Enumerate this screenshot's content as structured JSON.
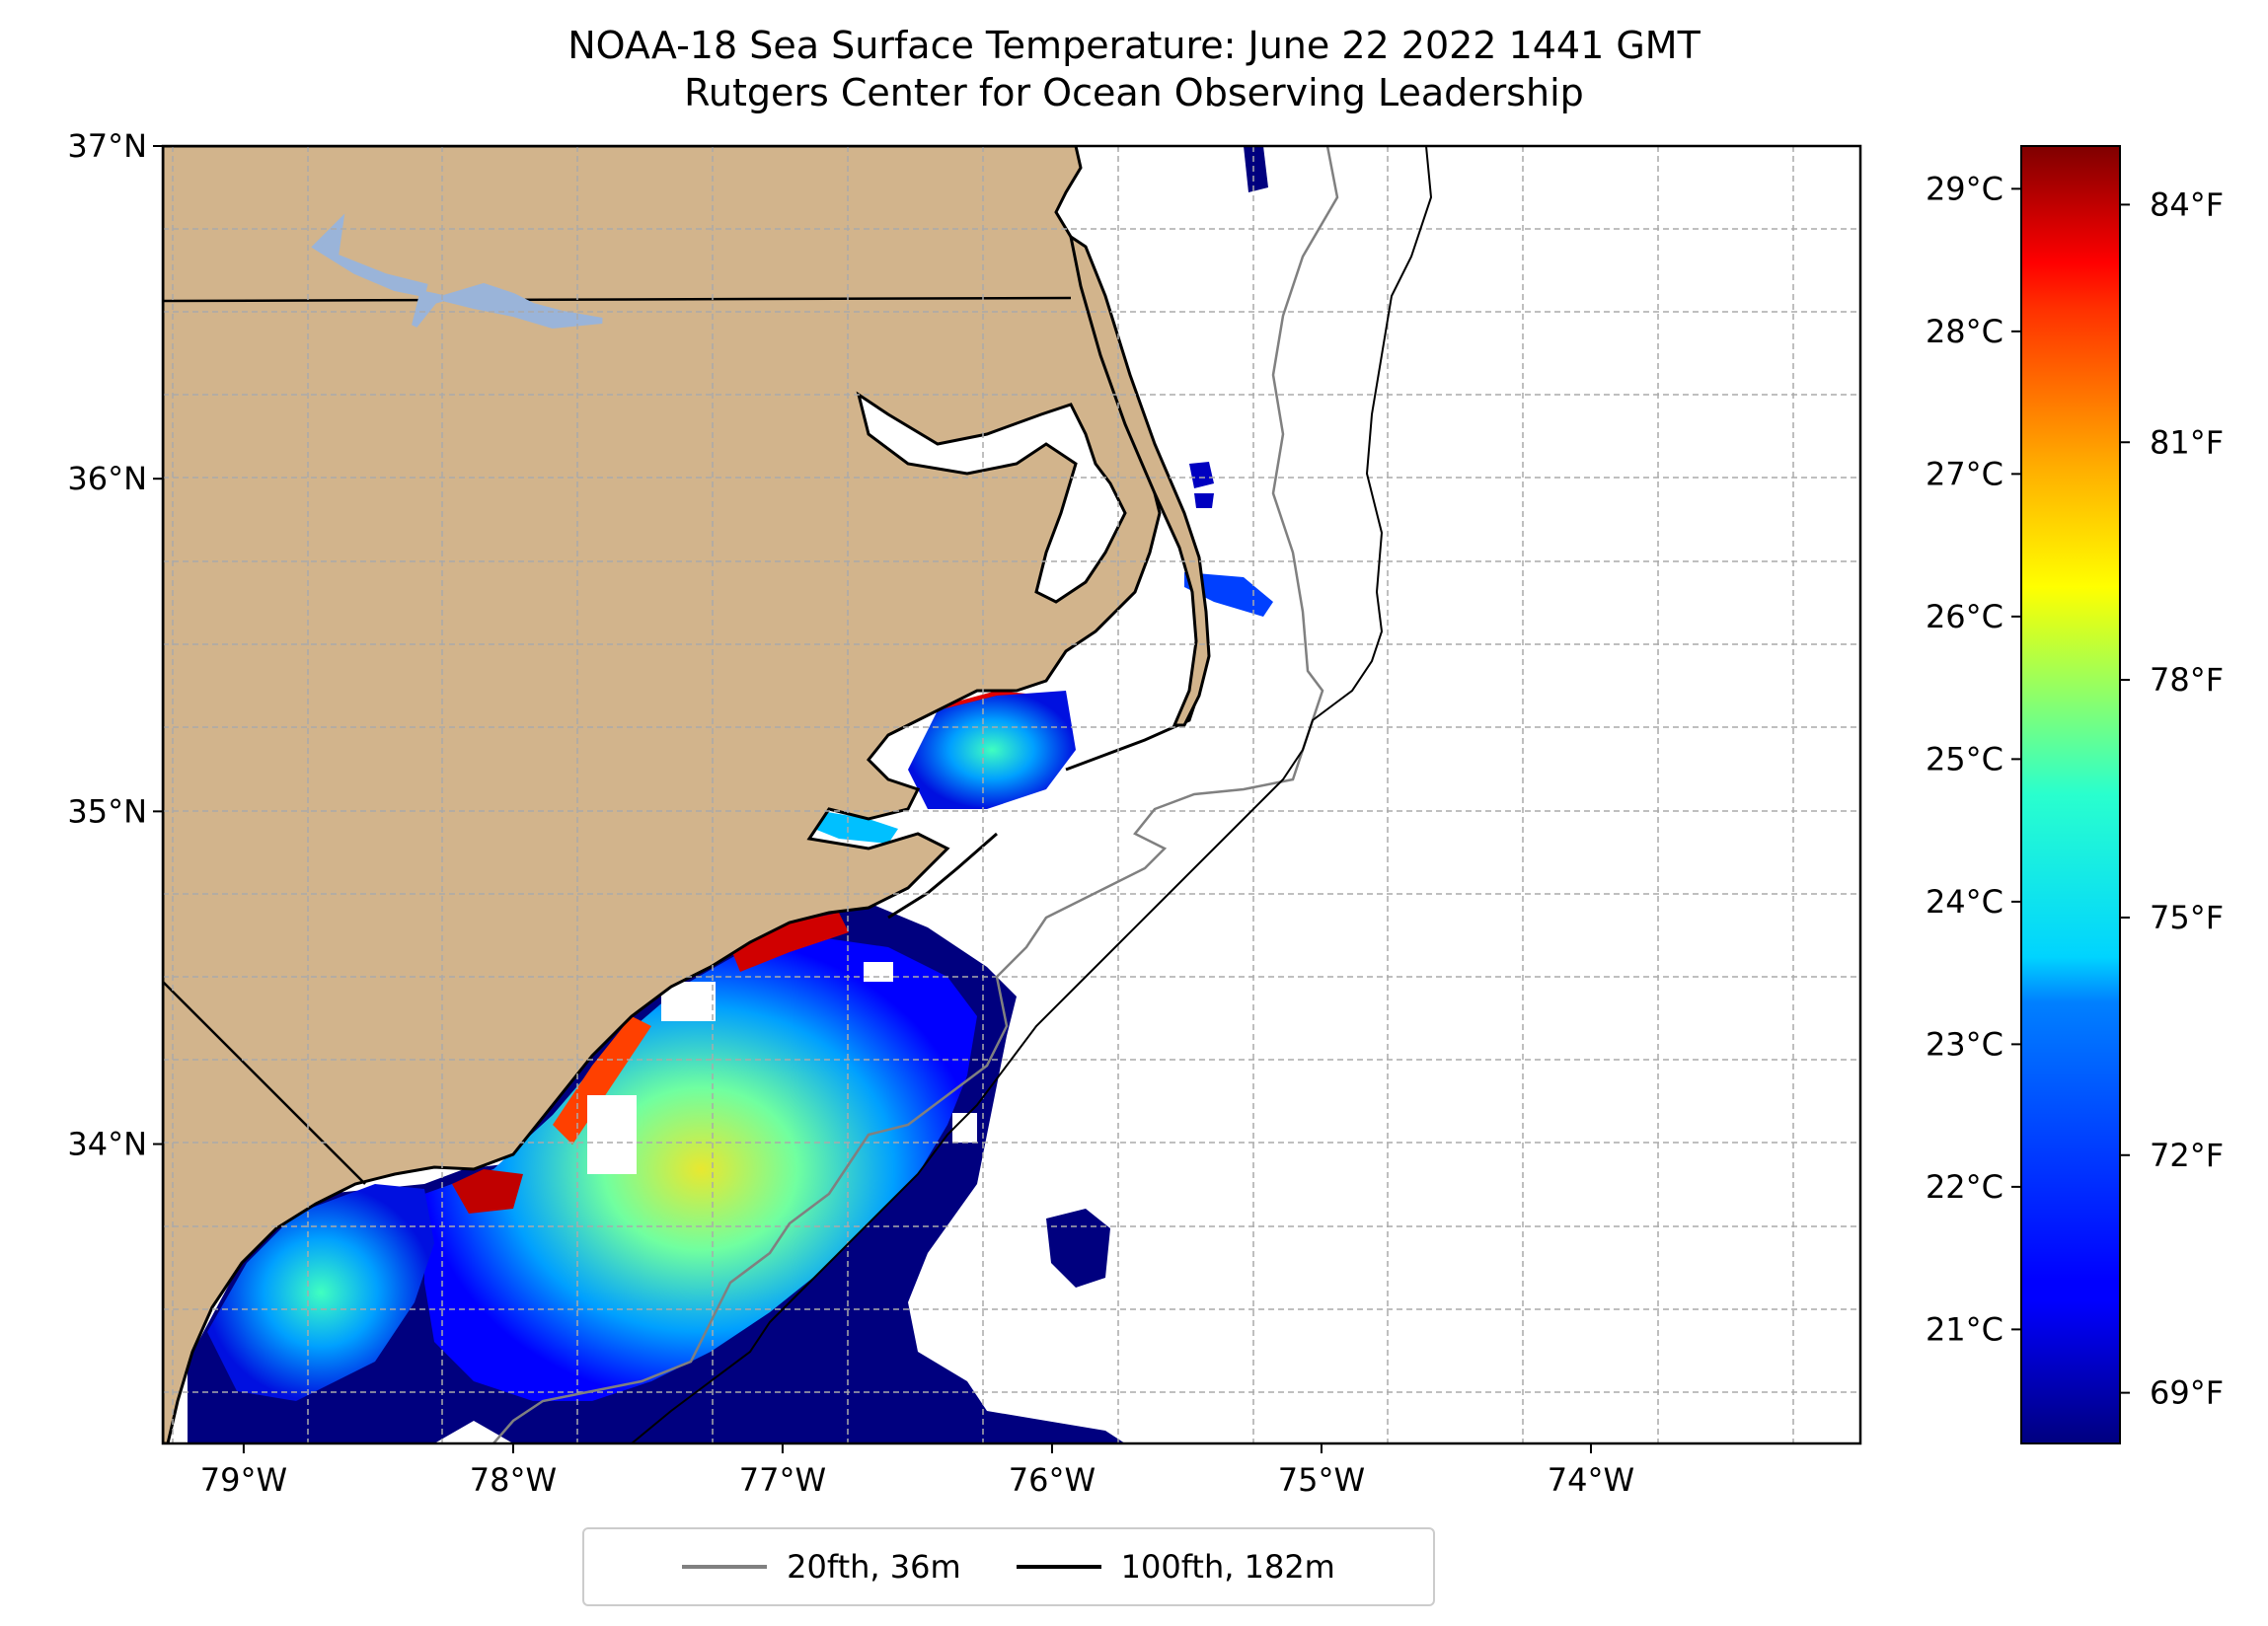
{
  "title": {
    "line1": "NOAA-18 Sea Surface Temperature: June 22 2022 1441 GMT",
    "line2": "Rutgers Center for Ocean Observing Leadership"
  },
  "map": {
    "lon_range": [
      -79.3,
      -73.0
    ],
    "lat_range": [
      33.1,
      37.0
    ],
    "lat_ticks": [
      {
        "value": 37,
        "label": "37°N"
      },
      {
        "value": 36,
        "label": "36°N"
      },
      {
        "value": 35,
        "label": "35°N"
      },
      {
        "value": 34,
        "label": "34°N"
      }
    ],
    "lon_ticks": [
      {
        "value": -79,
        "label": "79°W"
      },
      {
        "value": -78,
        "label": "78°W"
      },
      {
        "value": -77,
        "label": "77°W"
      },
      {
        "value": -76,
        "label": "76°W"
      },
      {
        "value": -75,
        "label": "75°W"
      },
      {
        "value": -74,
        "label": "74°W"
      }
    ],
    "grid": true,
    "colors": {
      "land": "#d2b48c",
      "lake": "#9ab4d9",
      "coast": "#000000",
      "contour20": "#808080",
      "contour100": "#000000",
      "grid": "#aaaaaa"
    }
  },
  "colorbar": {
    "colormap": "jet",
    "range_c": [
      20.2,
      29.3
    ],
    "celsius_ticks": [
      {
        "value": 29,
        "label": "29°C"
      },
      {
        "value": 28,
        "label": "28°C"
      },
      {
        "value": 27,
        "label": "27°C"
      },
      {
        "value": 26,
        "label": "26°C"
      },
      {
        "value": 25,
        "label": "25°C"
      },
      {
        "value": 24,
        "label": "24°C"
      },
      {
        "value": 23,
        "label": "23°C"
      },
      {
        "value": 22,
        "label": "22°C"
      },
      {
        "value": 21,
        "label": "21°C"
      }
    ],
    "fahrenheit_ticks": [
      {
        "value": 84,
        "label": "84°F"
      },
      {
        "value": 81,
        "label": "81°F"
      },
      {
        "value": 78,
        "label": "78°F"
      },
      {
        "value": 75,
        "label": "75°F"
      },
      {
        "value": 72,
        "label": "72°F"
      },
      {
        "value": 69,
        "label": "69°F"
      }
    ]
  },
  "legend": {
    "position": "bottom-center",
    "entries": [
      {
        "label": "20fth, 36m",
        "color": "#808080"
      },
      {
        "label": "100fth, 182m",
        "color": "#000000"
      }
    ]
  }
}
